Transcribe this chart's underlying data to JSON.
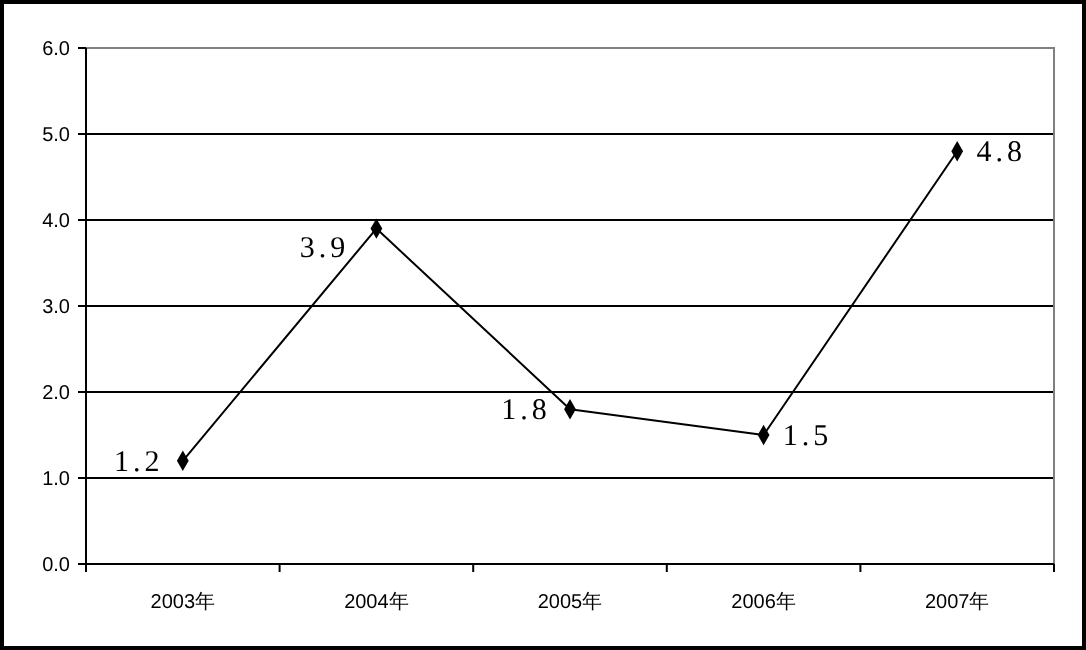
{
  "chart_data": {
    "type": "line",
    "categories": [
      "2003年",
      "2004年",
      "2005年",
      "2006年",
      "2007年"
    ],
    "series": [
      {
        "color": "#000000",
        "values": [
          1.2,
          3.9,
          1.8,
          1.5,
          4.8
        ]
      }
    ],
    "ylim": [
      0,
      6
    ],
    "yticks": [
      {
        "value": 0,
        "label": "0.0"
      },
      {
        "value": 1,
        "label": "1.0"
      },
      {
        "value": 2,
        "label": "2.0"
      },
      {
        "value": 3,
        "label": "3.0"
      },
      {
        "value": 4,
        "label": "4.0"
      },
      {
        "value": 5,
        "label": "5.0"
      },
      {
        "value": 6,
        "label": "6.0"
      }
    ],
    "grid": "y",
    "marker": "diamond",
    "line_style": "solid",
    "data_labels": true
  }
}
